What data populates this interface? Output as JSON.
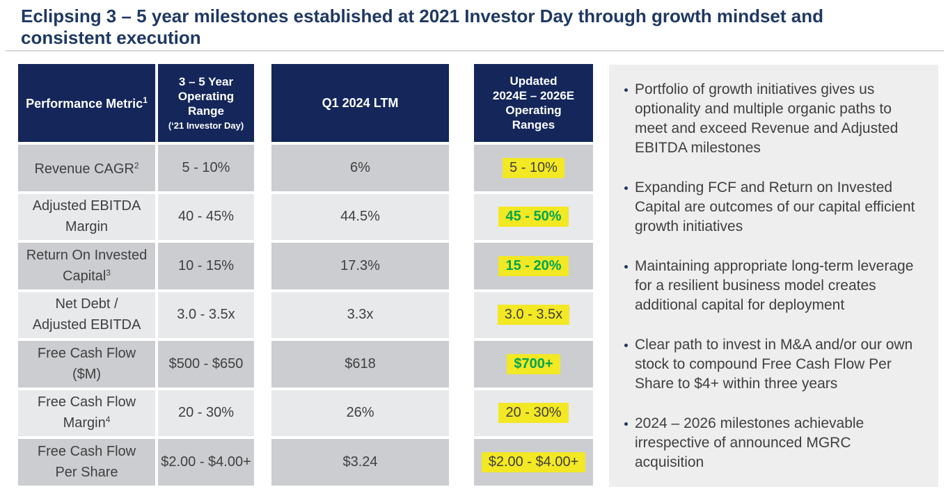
{
  "title": {
    "line1": "Eclipsing 3 – 5 year milestones established at 2021 Investor Day through growth mindset and",
    "line2": "consistent execution"
  },
  "table": {
    "headers": {
      "metric": {
        "label": "Performance Metric",
        "sup": "1"
      },
      "range": {
        "main": "3 – 5 Year\nOperating\nRange",
        "sub": "(‘21 Investor Day)"
      },
      "ltm": "Q1 2024 LTM",
      "updated": "Updated\n2024E – 2026E\nOperating\nRanges"
    },
    "rows": [
      {
        "metric": {
          "label": "Revenue CAGR",
          "sup": "2"
        },
        "range": "5 - 10%",
        "ltm": "6%",
        "updated": "5 - 10%"
      },
      {
        "metric": {
          "label": "Adjusted EBITDA\nMargin",
          "sup": ""
        },
        "range": "40 - 45%",
        "ltm": "44.5%",
        "updated": "45 - 50%"
      },
      {
        "metric": {
          "label": "Return On Invested\nCapital",
          "sup": "3"
        },
        "range": "10 - 15%",
        "ltm": "17.3%",
        "updated": "15 - 20%"
      },
      {
        "metric": {
          "label": "Net Debt /\nAdjusted EBITDA",
          "sup": ""
        },
        "range": "3.0 - 3.5x",
        "ltm": "3.3x",
        "updated": "3.0 - 3.5x"
      },
      {
        "metric": {
          "label": "Free Cash Flow\n($M)",
          "sup": ""
        },
        "range": "$500 - $650",
        "ltm": "$618",
        "updated": "$700+"
      },
      {
        "metric": {
          "label": "Free Cash Flow\nMargin",
          "sup": "4"
        },
        "range": "20 - 30%",
        "ltm": "26%",
        "updated": "20 - 30%"
      },
      {
        "metric": {
          "label": "Free Cash Flow\nPer Share",
          "sup": ""
        },
        "range": "$2.00 - $4.00+",
        "ltm": "$3.24",
        "updated": "$2.00 - $4.00+"
      }
    ]
  },
  "panel": {
    "bullets": [
      "Portfolio of growth initiatives gives us optionality and multiple organic paths to meet and exceed Revenue and Adjusted EBITDA milestones",
      "Expanding FCF and Return on Invested Capital are outcomes of our capital efficient growth initiatives",
      "Maintaining appropriate long-term leverage for a resilient business model creates additional capital for deployment",
      "Clear path to invest in M&A and/or our own stock to compound Free Cash Flow Per Share to $4+ within three years",
      "2024 – 2026 milestones achievable irrespective of announced MGRC acquisition"
    ]
  },
  "colors": {
    "header_navy": "#14265a",
    "title_navy": "#1f3864",
    "highlight_yellow": "#f3e824",
    "positive_green": "#00a651",
    "row_dark": "#cccdd1",
    "row_light": "#e8e9eb",
    "panel_gray": "#eeeeee"
  }
}
